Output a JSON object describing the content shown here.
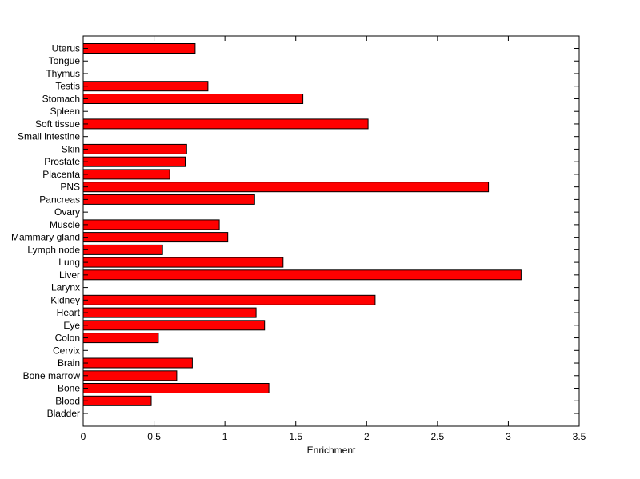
{
  "chart_data": {
    "type": "bar",
    "orientation": "horizontal",
    "title": "",
    "xlabel": "Enrichment",
    "ylabel": "",
    "xlim": [
      0,
      3.5
    ],
    "xticks": [
      "0",
      "0.5",
      "1",
      "1.5",
      "2",
      "2.5",
      "3",
      "3.5"
    ],
    "grid": false,
    "bar_color": "#ff0000",
    "edge_color": "#000000",
    "categories": [
      "Bladder",
      "Blood",
      "Bone",
      "Bone marrow",
      "Brain",
      "Cervix",
      "Colon",
      "Eye",
      "Heart",
      "Kidney",
      "Larynx",
      "Liver",
      "Lung",
      "Lymph node",
      "Mammary gland",
      "Muscle",
      "Ovary",
      "Pancreas",
      "PNS",
      "Placenta",
      "Prostate",
      "Skin",
      "Small intestine",
      "Soft tissue",
      "Spleen",
      "Stomach",
      "Testis",
      "Thymus",
      "Tongue",
      "Uterus"
    ],
    "values": [
      0,
      0.48,
      1.31,
      0.66,
      0.77,
      0,
      0.53,
      1.28,
      1.22,
      2.06,
      0,
      3.09,
      1.41,
      0.56,
      1.02,
      0.96,
      0,
      1.21,
      2.86,
      0.61,
      0.72,
      0.73,
      0,
      2.01,
      0,
      1.55,
      0.88,
      0,
      0,
      0.79
    ]
  }
}
